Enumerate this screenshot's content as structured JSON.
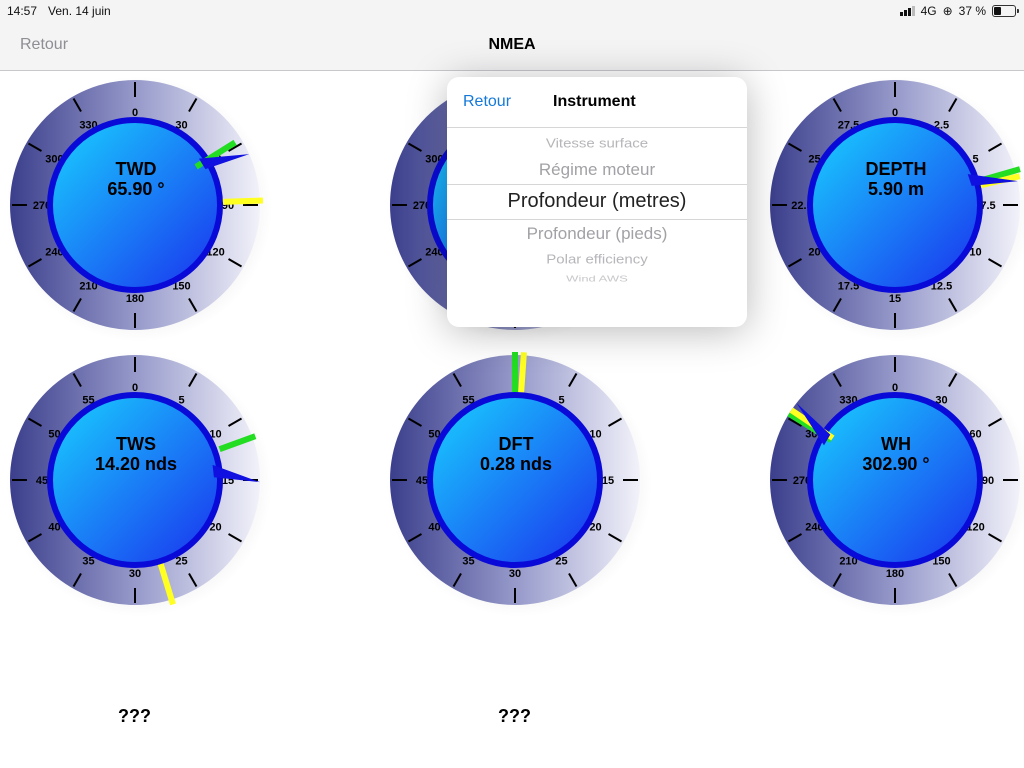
{
  "status": {
    "time": "14:57",
    "date": "Ven. 14 juin",
    "network": "4G",
    "battery": "37 %",
    "battery_level": 0.37
  },
  "nav": {
    "back": "Retour",
    "title": "NMEA"
  },
  "gauges": [
    {
      "label": "TWD",
      "value": "65.90 °",
      "ticks": [
        "0",
        "30",
        "60",
        "90",
        "120",
        "150",
        "180",
        "210",
        "240",
        "270",
        "300",
        "330"
      ]
    },
    {
      "label": "",
      "value": "",
      "ticks": [
        "300",
        "270",
        "240"
      ]
    },
    {
      "label": "DEPTH",
      "value": "5.90 m",
      "ticks": [
        "0",
        "2.5",
        "5",
        "7.5",
        "10",
        "12.5",
        "15",
        "17.5",
        "20",
        "22.5",
        "25",
        "27.5"
      ]
    },
    {
      "label": "TWS",
      "value": "14.20 nds",
      "ticks": [
        "0",
        "5",
        "10",
        "15",
        "20",
        "25",
        "30",
        "35",
        "40",
        "45",
        "50",
        "55"
      ]
    },
    {
      "label": "DFT",
      "value": "0.28 nds",
      "ticks": [
        "0",
        "5",
        "10",
        "15",
        "20",
        "25",
        "30",
        "35",
        "40",
        "45",
        "50",
        "55"
      ]
    },
    {
      "label": "WH",
      "value": "302.90 °",
      "ticks": [
        "0",
        "30",
        "60",
        "90",
        "120",
        "150",
        "180",
        "210",
        "240",
        "270",
        "300",
        "330"
      ]
    }
  ],
  "unknown_labels": [
    "???",
    "???"
  ],
  "popover": {
    "back": "Retour",
    "title": "Instrument",
    "items": [
      "Vitesse surface",
      "Régime moteur",
      "Profondeur (metres)",
      "Profondeur (pieds)",
      "Polar efficiency",
      "Wind AWS"
    ],
    "selected": "Profondeur (metres)"
  },
  "colors": {
    "accent": "#1479d9",
    "dial_dark": "#3b3f8c",
    "dial_light": "#eeeef8",
    "face_light": "#19c8ff",
    "face_dark": "#1a3cf2",
    "ring": "#0a0ad8",
    "needle_green": "#22dd22",
    "needle_yellow": "#ffff22",
    "pointer": "#1010e0"
  }
}
